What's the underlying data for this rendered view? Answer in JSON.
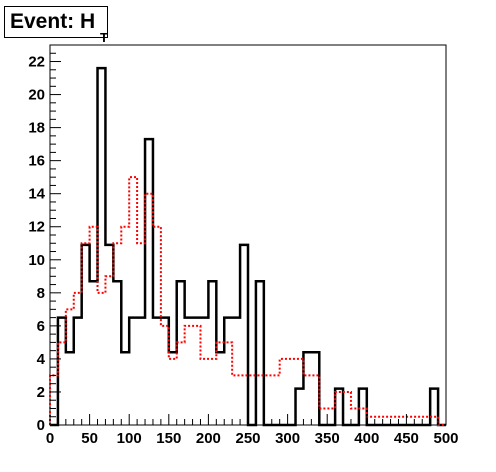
{
  "chart_data": {
    "type": "histogram",
    "title": "Event: H",
    "title_subscript": "T",
    "xlabel": "",
    "ylabel": "",
    "xlim": [
      0,
      500
    ],
    "ylim": [
      0,
      23
    ],
    "x_ticks": [
      0,
      50,
      100,
      150,
      200,
      250,
      300,
      350,
      400,
      450,
      500
    ],
    "y_ticks": [
      0,
      2,
      4,
      6,
      8,
      10,
      12,
      14,
      16,
      18,
      20,
      22
    ],
    "grid": false,
    "series": [
      {
        "style": "solid",
        "color": "#000000",
        "bin_edges": [
          0,
          10,
          20,
          30,
          40,
          50,
          60,
          70,
          80,
          90,
          100,
          110,
          120,
          130,
          140,
          150,
          160,
          170,
          180,
          190,
          200,
          210,
          220,
          230,
          240,
          250,
          260,
          270,
          280,
          290,
          300,
          310,
          320,
          330,
          340,
          350,
          360,
          370,
          380,
          390,
          400,
          410,
          420,
          430,
          440,
          450,
          460,
          470,
          480,
          490,
          500
        ],
        "values": [
          0,
          6.5,
          4.4,
          6.5,
          10.9,
          8.7,
          21.6,
          10.9,
          8.7,
          4.4,
          6.5,
          6.5,
          17.3,
          6.5,
          6.5,
          4.4,
          8.7,
          6.5,
          6.5,
          6.5,
          8.7,
          4.4,
          6.5,
          6.5,
          10.9,
          0,
          8.7,
          0,
          0,
          0,
          0,
          2.2,
          4.4,
          4.4,
          0,
          0,
          2.2,
          0,
          0,
          2.2,
          0,
          0,
          0,
          0,
          0,
          0,
          0,
          0,
          2.2,
          0
        ]
      },
      {
        "style": "dotted",
        "color": "#ff0000",
        "bin_edges": [
          0,
          10,
          20,
          30,
          40,
          50,
          60,
          70,
          80,
          90,
          100,
          110,
          120,
          130,
          140,
          150,
          160,
          170,
          180,
          190,
          200,
          210,
          220,
          230,
          240,
          250,
          260,
          270,
          280,
          290,
          300,
          310,
          320,
          330,
          340,
          350,
          360,
          370,
          380,
          390,
          400,
          410,
          420,
          430,
          440,
          450,
          460,
          470,
          480,
          490,
          500
        ],
        "values": [
          3,
          5,
          7,
          8,
          11,
          12,
          8,
          9,
          11,
          12,
          15,
          11,
          14,
          12,
          6,
          4,
          5,
          6,
          6,
          4,
          4,
          5,
          5,
          3,
          3,
          3,
          3,
          3,
          3,
          4,
          4,
          4,
          3,
          3,
          1,
          1,
          2,
          2,
          1,
          1,
          0.5,
          0.5,
          0.5,
          0.5,
          0.5,
          0.5,
          0.5,
          0.5,
          0.5,
          0
        ]
      }
    ]
  }
}
